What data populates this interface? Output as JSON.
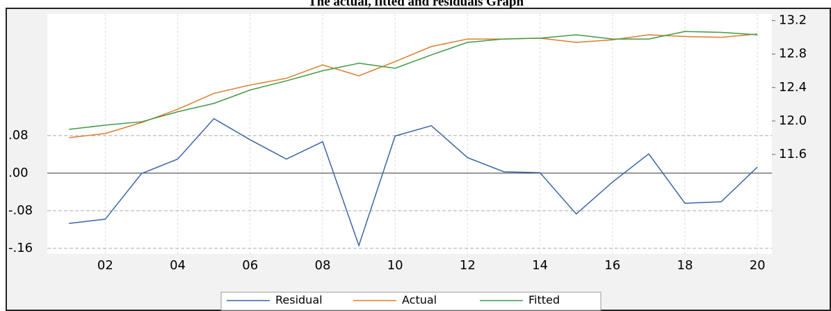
{
  "chart_data": {
    "type": "line",
    "title": "The actual, fitted and residuals Graph",
    "x": [
      2001,
      2002,
      2003,
      2004,
      2005,
      2006,
      2007,
      2008,
      2009,
      2010,
      2011,
      2012,
      2013,
      2014,
      2015,
      2016,
      2017,
      2018,
      2019,
      2020
    ],
    "xlim": [
      2000.4,
      2020.4
    ],
    "xticks": [
      {
        "value": 2002,
        "label": "02"
      },
      {
        "value": 2004,
        "label": "04"
      },
      {
        "value": 2006,
        "label": "06"
      },
      {
        "value": 2008,
        "label": "08"
      },
      {
        "value": 2010,
        "label": "10"
      },
      {
        "value": 2012,
        "label": "12"
      },
      {
        "value": 2014,
        "label": "14"
      },
      {
        "value": 2016,
        "label": "16"
      },
      {
        "value": 2018,
        "label": "18"
      },
      {
        "value": 2020,
        "label": "20"
      }
    ],
    "ylim": [
      -0.172,
      0.339
    ],
    "yticks": [
      {
        "value": 0.08,
        "label": ".08"
      },
      {
        "value": 0,
        "label": ".00"
      },
      {
        "value": -0.08,
        "label": "-.08"
      },
      {
        "value": -0.16,
        "label": "-.16"
      }
    ],
    "y2lim": [
      10.41,
      13.28
    ],
    "y2ticks": [
      11.6,
      {
        "value": 12,
        "label": "12.0"
      },
      12.4,
      12.8,
      13.2
    ],
    "grid": true,
    "legend": "bottom",
    "series": [
      {
        "name": "Residual",
        "color": "#3a64a8",
        "values": [
          -0.107,
          -0.098,
          -0.001,
          0.03,
          0.116,
          0.071,
          0.03,
          0.067,
          -0.154,
          0.079,
          0.101,
          0.033,
          0.003,
          0.001,
          -0.087,
          -0.019,
          0.041,
          -0.064,
          -0.061,
          0.013
        ]
      },
      {
        "name": "Actual",
        "color": "#e07b2c",
        "axis": "y2",
        "values": [
          11.8,
          11.85,
          11.98,
          12.14,
          12.33,
          12.43,
          12.51,
          12.67,
          12.54,
          12.71,
          12.89,
          12.98,
          12.98,
          12.99,
          12.94,
          12.97,
          13.03,
          13.01,
          13.0,
          13.04
        ]
      },
      {
        "name": "Fitted",
        "color": "#3f9a45",
        "axis": "y2",
        "values": [
          11.9,
          11.95,
          11.99,
          12.11,
          12.21,
          12.37,
          12.48,
          12.6,
          12.69,
          12.63,
          12.79,
          12.94,
          12.98,
          12.99,
          13.03,
          12.98,
          12.98,
          13.07,
          13.06,
          13.03
        ]
      }
    ]
  }
}
